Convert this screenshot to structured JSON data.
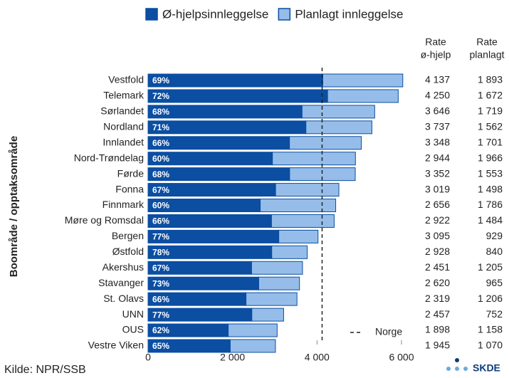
{
  "chart_data": {
    "type": "stacked_barh",
    "y_label": "Boområde / opptaksområde",
    "source": "Kilde: NPR/SSB",
    "logo": "SKDE",
    "categories": [
      "Vestfold",
      "Telemark",
      "Sørlandet",
      "Nordland",
      "Innlandet",
      "Nord-Trøndelag",
      "Førde",
      "Fonna",
      "Finnmark",
      "Møre og Romsdal",
      "Bergen",
      "Østfold",
      "Akershus",
      "Stavanger",
      "St. Olavs",
      "UNN",
      "OUS",
      "Vestre Viken"
    ],
    "series": [
      {
        "name": "Ø-hjelpsinnleggelse",
        "column_header": [
          "Rate",
          "ø-hjelp"
        ],
        "color": "#0b4ea2",
        "values": [
          4137,
          4250,
          3646,
          3737,
          3348,
          2944,
          3352,
          3019,
          2656,
          2922,
          3095,
          2928,
          2451,
          2620,
          2319,
          2457,
          1898,
          1945
        ],
        "value_labels": [
          "4 137",
          "4 250",
          "3 646",
          "3 737",
          "3 348",
          "2 944",
          "3 352",
          "3 019",
          "2 656",
          "2 922",
          "3 095",
          "2 928",
          "2 451",
          "2 620",
          "2 319",
          "2 457",
          "1 898",
          "1 945"
        ]
      },
      {
        "name": "Planlagt innleggelse",
        "column_header": [
          "Rate",
          "planlagt"
        ],
        "color": "#96bde9",
        "values": [
          1893,
          1672,
          1719,
          1562,
          1701,
          1966,
          1553,
          1498,
          1786,
          1484,
          929,
          840,
          1205,
          965,
          1206,
          752,
          1158,
          1070
        ],
        "value_labels": [
          "1 893",
          "1 672",
          "1 719",
          "1 562",
          "1 701",
          "1 966",
          "1 553",
          "1 498",
          "1 786",
          "1 484",
          "929",
          "840",
          "1 205",
          "965",
          "1 206",
          "752",
          "1 158",
          "1 070"
        ]
      }
    ],
    "share": {
      "values": [
        69,
        72,
        68,
        71,
        66,
        60,
        68,
        67,
        60,
        66,
        77,
        78,
        67,
        73,
        66,
        77,
        62,
        65
      ],
      "value_labels": [
        "69%",
        "72%",
        "68%",
        "71%",
        "66%",
        "60%",
        "68%",
        "67%",
        "60%",
        "66%",
        "77%",
        "78%",
        "67%",
        "73%",
        "66%",
        "77%",
        "62%",
        "65%"
      ]
    },
    "reference": {
      "label": "Norge",
      "value": 4120
    },
    "xlim": [
      0,
      6000
    ],
    "xticks": [
      0,
      {
        "value": 2000,
        "label": "2 000"
      },
      {
        "value": 4000,
        "label": "4 000"
      },
      {
        "value": 6000,
        "label": "6 000"
      }
    ]
  }
}
